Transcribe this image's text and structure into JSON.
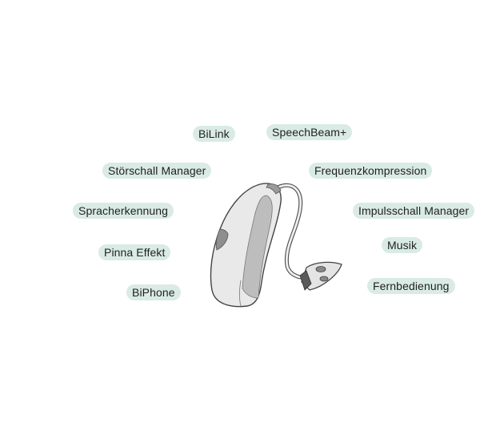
{
  "colors": {
    "label_background": "#d9ebe4",
    "label_text": "#222222",
    "device_shell_light": "#e9e9e9",
    "device_shell_mid": "#c8c8c8",
    "device_shell_dark": "#8e8e8e",
    "device_outline": "#444444"
  },
  "device": {
    "icon": "hearing-aid-icon"
  },
  "features": {
    "bilink": "BiLink",
    "speechbeam": "SpeechBeam+",
    "stoerschall_manager": "Störschall Manager",
    "frequenzkompression": "Frequenzkompression",
    "spracherkennung": "Spracherkennung",
    "impulsschall_manager": "Impulsschall Manager",
    "pinna_effekt": "Pinna Effekt",
    "musik": "Musik",
    "biphone": "BiPhone",
    "fernbedienung": "Fernbedienung"
  }
}
